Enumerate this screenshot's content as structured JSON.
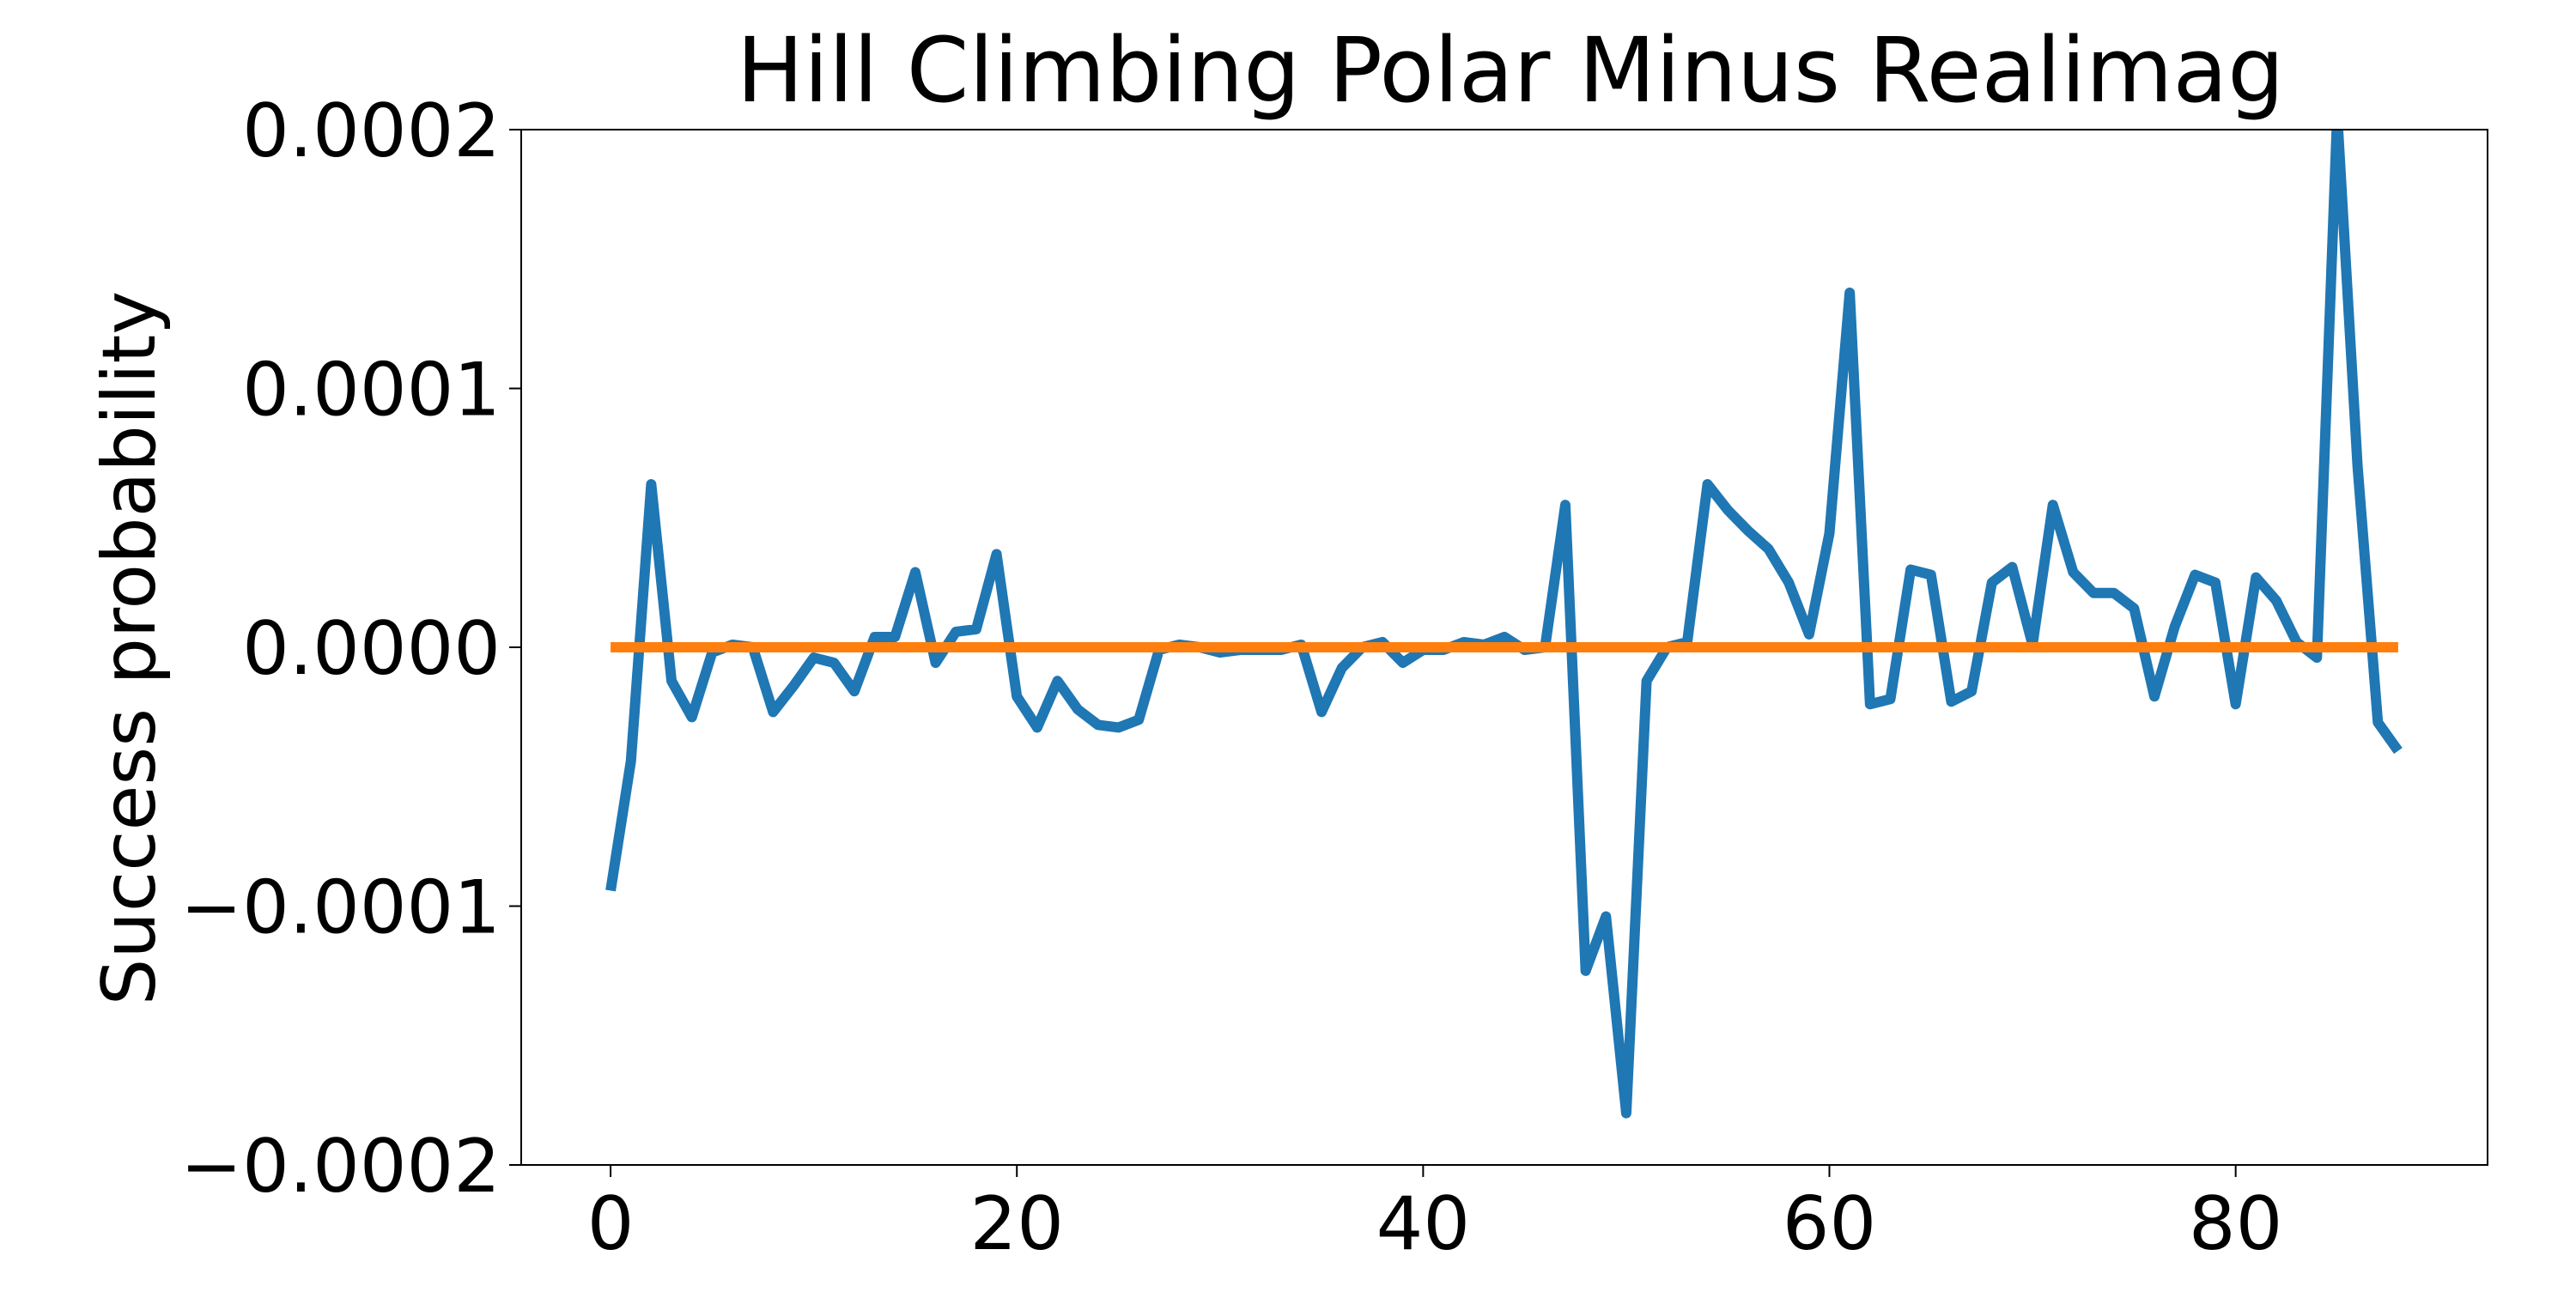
{
  "chart_data": {
    "type": "line",
    "title": "Hill Climbing Polar Minus Realimag",
    "xlabel": "",
    "ylabel": "Success probability",
    "xlim": [
      -4.4,
      92.4
    ],
    "ylim": [
      -0.0002,
      0.0002
    ],
    "xticks": [
      0,
      20,
      40,
      60,
      80
    ],
    "yticks": [
      -0.0002,
      -0.0001,
      0,
      0.0001,
      0.0002
    ],
    "ytick_labels": [
      "−0.0002",
      "−0.0001",
      "0.0000",
      "0.0001",
      "0.0002"
    ],
    "grid": false,
    "legend": "none",
    "series": [
      {
        "color": "#1f77b4",
        "x": [
          0,
          1,
          2,
          3,
          4,
          5,
          6,
          7,
          8,
          9,
          10,
          11,
          12,
          13,
          14,
          15,
          16,
          17,
          18,
          19,
          20,
          21,
          22,
          23,
          24,
          25,
          26,
          27,
          28,
          29,
          30,
          31,
          32,
          33,
          34,
          35,
          36,
          37,
          38,
          39,
          40,
          41,
          42,
          43,
          44,
          45,
          46,
          47,
          48,
          49,
          50,
          51,
          52,
          53,
          54,
          55,
          56,
          57,
          58,
          59,
          60,
          61,
          62,
          63,
          64,
          65,
          66,
          67,
          68,
          69,
          70,
          71,
          72,
          73,
          74,
          75,
          76,
          77,
          78,
          79,
          80,
          81,
          82,
          83,
          84,
          85,
          86,
          87,
          88
        ],
        "y": [
          -9.4e-05,
          -4.4e-05,
          6.3e-05,
          -1.3e-05,
          -2.7e-05,
          -2e-06,
          1e-06,
          0.0,
          -2.5e-05,
          -1.5e-05,
          -4e-06,
          -6e-06,
          -1.7e-05,
          4e-06,
          4e-06,
          2.9e-05,
          -6e-06,
          6e-06,
          7e-06,
          3.6e-05,
          -1.9e-05,
          -3.1e-05,
          -1.3e-05,
          -2.4e-05,
          -3e-05,
          -3.1e-05,
          -2.8e-05,
          -1e-06,
          1e-06,
          0.0,
          -2e-06,
          -1e-06,
          -1e-06,
          -1e-06,
          1e-06,
          -2.5e-05,
          -8e-06,
          0.0,
          2e-06,
          -6e-06,
          -1e-06,
          -1e-06,
          2e-06,
          1e-06,
          4e-06,
          -1e-06,
          0.0,
          5.5e-05,
          -0.000125,
          -0.000104,
          -0.00018,
          -1.3e-05,
          0.0,
          2e-06,
          6.3e-05,
          5.3e-05,
          4.5e-05,
          3.8e-05,
          2.5e-05,
          5e-06,
          4.4e-05,
          0.000137,
          -2.2e-05,
          -2e-05,
          3e-05,
          2.8e-05,
          -2.1e-05,
          -1.7e-05,
          2.5e-05,
          3.1e-05,
          1e-06,
          5.5e-05,
          2.9e-05,
          2.1e-05,
          2.1e-05,
          1.5e-05,
          -1.9e-05,
          8e-06,
          2.8e-05,
          2.5e-05,
          -2.2e-05,
          2.7e-05,
          1.8e-05,
          2e-06,
          -4e-06,
          0.000206,
          7e-05,
          -2.9e-05,
          -4e-05
        ]
      },
      {
        "color": "#ff7f0e",
        "x": [
          0,
          88
        ],
        "y": [
          0,
          0
        ]
      }
    ]
  }
}
